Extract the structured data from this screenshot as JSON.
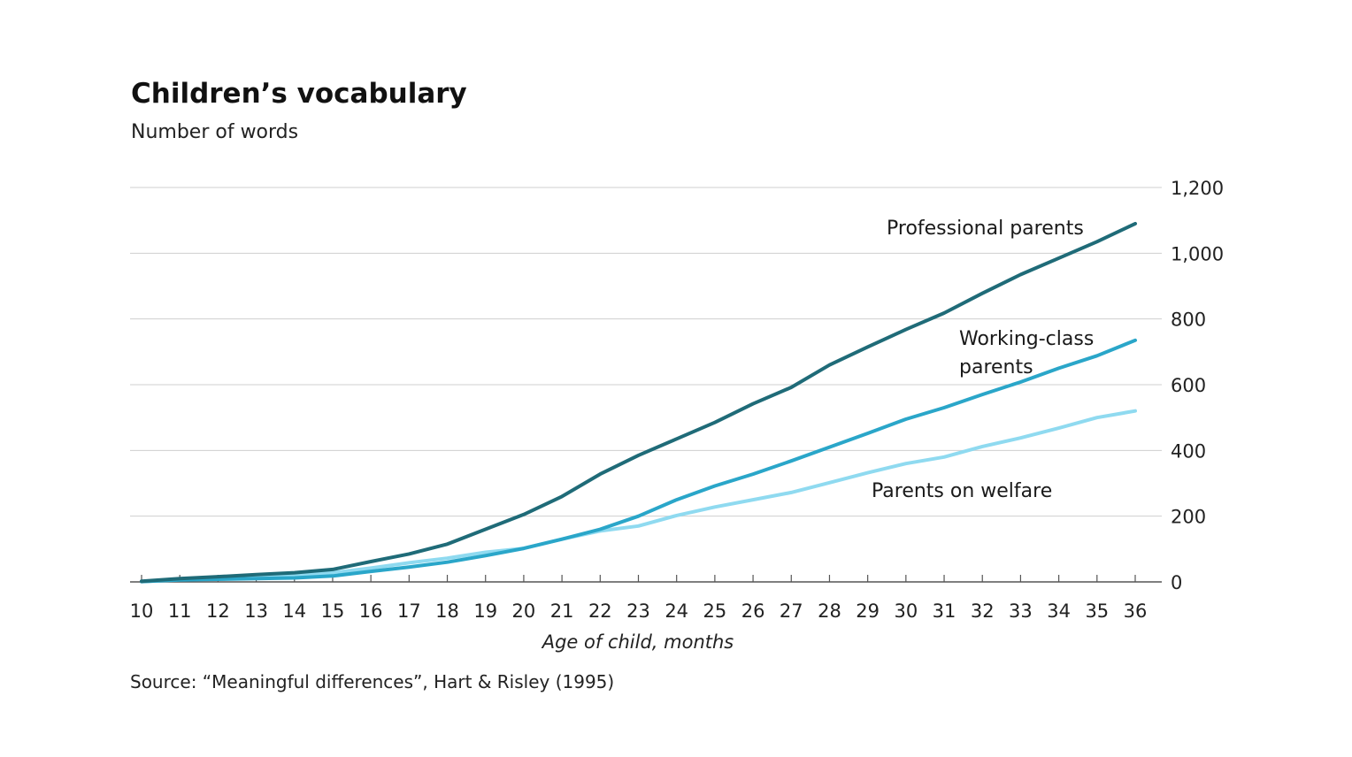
{
  "header": {
    "title": "Children’s vocabulary",
    "subtitle": "Number of words"
  },
  "footer": {
    "source": "Source: “Meaningful differences”, Hart & Risley (1995)"
  },
  "chart_data": {
    "type": "line",
    "title": "Children’s vocabulary",
    "subtitle": "Number of words",
    "xlabel": "Age of child, months",
    "ylabel": "",
    "x": [
      10,
      11,
      12,
      13,
      14,
      15,
      16,
      17,
      18,
      19,
      20,
      21,
      22,
      23,
      24,
      25,
      26,
      27,
      28,
      29,
      30,
      31,
      32,
      33,
      34,
      35,
      36
    ],
    "x_tick_labels": [
      "10",
      "11",
      "12",
      "13",
      "14",
      "15",
      "16",
      "17",
      "18",
      "19",
      "20",
      "21",
      "22",
      "23",
      "24",
      "25",
      "26",
      "27",
      "28",
      "29",
      "30",
      "31",
      "32",
      "33",
      "34",
      "35",
      "36"
    ],
    "xlim": [
      10,
      36
    ],
    "ylim": [
      0,
      1200
    ],
    "y_ticks": [
      0,
      200,
      400,
      600,
      800,
      1000,
      1200
    ],
    "y_tick_labels": [
      "0",
      "200",
      "400",
      "600",
      "800",
      "1,000",
      "1,200"
    ],
    "y_axis_side": "right",
    "grid": true,
    "series": [
      {
        "name": "Professional parents",
        "label_lines": [
          "Professional parents"
        ],
        "color": "#1f6b78",
        "values": [
          2,
          10,
          16,
          22,
          28,
          38,
          62,
          85,
          115,
          160,
          205,
          260,
          328,
          385,
          435,
          485,
          542,
          592,
          660,
          715,
          768,
          818,
          878,
          935,
          985,
          1035,
          1090
        ]
      },
      {
        "name": "Working-class parents",
        "label_lines": [
          "Working-class",
          "parents"
        ],
        "color": "#2aa6c9",
        "values": [
          1,
          6,
          8,
          10,
          12,
          18,
          32,
          45,
          60,
          80,
          102,
          130,
          160,
          200,
          250,
          292,
          328,
          368,
          410,
          452,
          495,
          530,
          570,
          608,
          650,
          688,
          735
        ]
      },
      {
        "name": "Parents on welfare",
        "label_lines": [
          "Parents on welfare"
        ],
        "color": "#8fdaf0",
        "values": [
          1,
          7,
          10,
          14,
          18,
          28,
          42,
          58,
          72,
          90,
          102,
          130,
          155,
          170,
          202,
          228,
          250,
          272,
          302,
          332,
          360,
          380,
          412,
          438,
          468,
          500,
          520
        ]
      }
    ]
  }
}
